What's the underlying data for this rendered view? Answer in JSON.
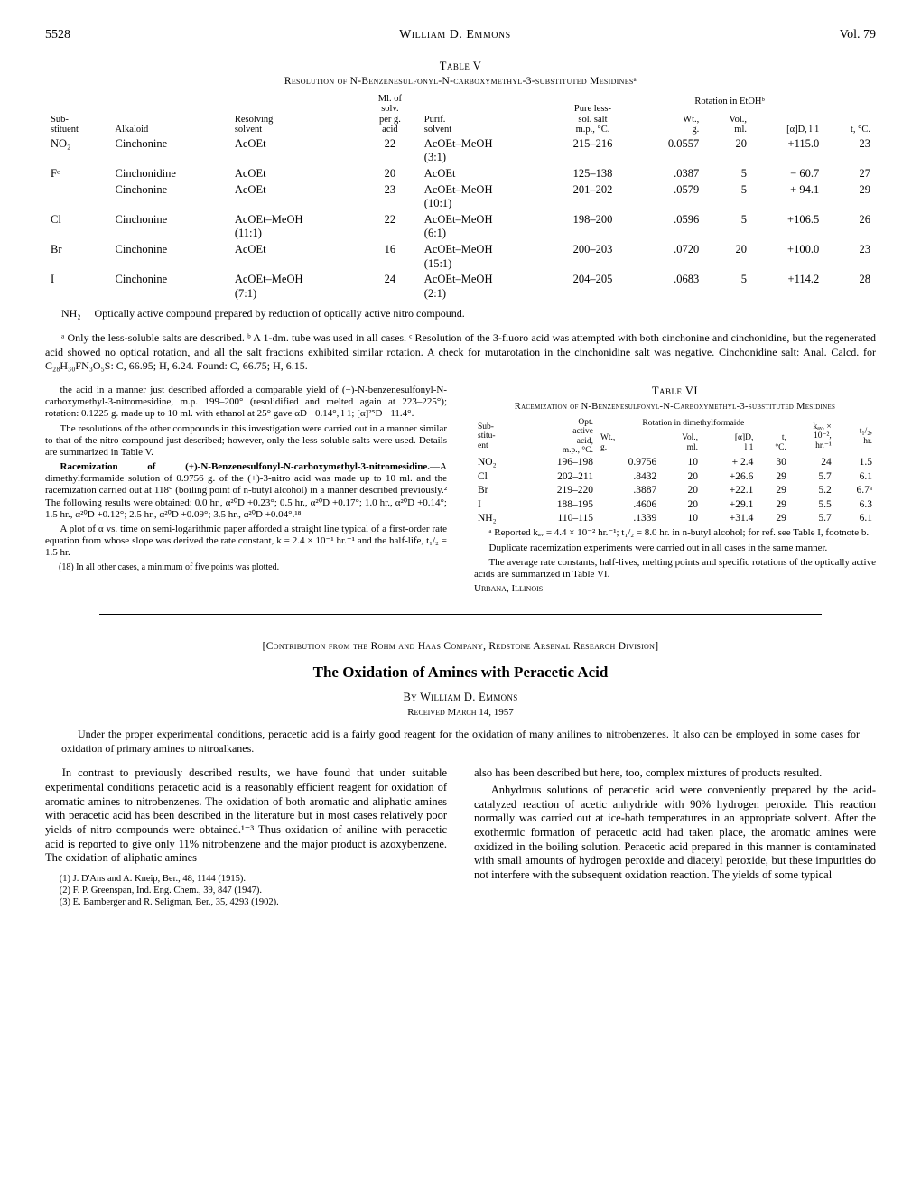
{
  "header": {
    "page_l": "5528",
    "author": "William D. Emmons",
    "page_r": "Vol. 79"
  },
  "table_v": {
    "caption": "Table V",
    "subcaption": "Resolution of N-Benzenesulfonyl-N-carboxymethyl-3-substituted Mesidinesᵃ",
    "col_headers": {
      "sub": "Sub-\nstituent",
      "alk": "Alkaloid",
      "resolv": "Resolving\nsolvent",
      "mlper": "Ml. of\nsolv.\nper g.\nacid",
      "purif": "Purif.\nsolvent",
      "pure": "Pure less-\nsol. salt\nm.p., °C.",
      "rot_span": "Rotation in EtOHᵇ",
      "wt": "Wt.,\ng.",
      "vol": "Vol.,\nml.",
      "alpha": "[α]D, l 1",
      "t": "t, °C."
    },
    "rows": [
      {
        "sub": "NO₂",
        "alk": "Cinchonine",
        "resolv": "AcOEt",
        "ml": "22",
        "purif": "AcOEt–MeOH\n(3:1)",
        "pure": "215–216",
        "wt": "0.0557",
        "vol": "20",
        "alpha": "+115.0",
        "t": "23"
      },
      {
        "sub": "Fᶜ",
        "alk": "Cinchonidine",
        "resolv": "AcOEt",
        "ml": "20",
        "purif": "AcOEt",
        "pure": "125–138",
        "wt": ".0387",
        "vol": "5",
        "alpha": "− 60.7",
        "t": "27"
      },
      {
        "sub": "",
        "alk": "Cinchonine",
        "resolv": "AcOEt",
        "ml": "23",
        "purif": "AcOEt–MeOH\n(10:1)",
        "pure": "201–202",
        "wt": ".0579",
        "vol": "5",
        "alpha": "+ 94.1",
        "t": "29"
      },
      {
        "sub": "Cl",
        "alk": "Cinchonine",
        "resolv": "AcOEt–MeOH\n(11:1)",
        "ml": "22",
        "purif": "AcOEt–MeOH\n(6:1)",
        "pure": "198–200",
        "wt": ".0596",
        "vol": "5",
        "alpha": "+106.5",
        "t": "26"
      },
      {
        "sub": "Br",
        "alk": "Cinchonine",
        "resolv": "AcOEt",
        "ml": "16",
        "purif": "AcOEt–MeOH\n(15:1)",
        "pure": "200–203",
        "wt": ".0720",
        "vol": "20",
        "alpha": "+100.0",
        "t": "23"
      },
      {
        "sub": "I",
        "alk": "Cinchonine",
        "resolv": "AcOEt–MeOH\n(7:1)",
        "ml": "24",
        "purif": "AcOEt–MeOH\n(2:1)",
        "pure": "204–205",
        "wt": ".0683",
        "vol": "5",
        "alpha": "+114.2",
        "t": "28"
      }
    ],
    "nh2_line": "NH₂     Optically active compound prepared by reduction of optically active nitro compound.",
    "footnotes": "ᵃ Only the less-soluble salts are described.  ᵇ A 1-dm. tube was used in all cases.  ᶜ Resolution of the 3-fluoro acid was attempted with both cinchonine and cinchonidine, but the regenerated acid showed no optical rotation, and all the salt fractions exhibited similar rotation.  A check for mutarotation in the cinchonidine salt was negative.  Cinchonidine salt: Anal.  Calcd. for C₂₈H₃₀FN₃O₅S: C, 66.95; H, 6.24.  Found: C, 66.75; H, 6.15."
  },
  "left_col": {
    "p1": "the acid in a manner just described afforded a comparable yield of (−)-N-benzenesulfonyl-N-carboxymethyl-3-nitromesidine, m.p. 199–200° (resolidified and melted again at 223–225°); rotation: 0.1225 g. made up to 10 ml. with ethanol at 25° gave αD −0.14°, l 1; [α]²⁵D −11.4°.",
    "p2": "The resolutions of the other compounds in this investigation were carried out in a manner similar to that of the nitro compound just described; however, only the less-soluble salts were used.  Details are summarized in Table V.",
    "p3_bold": "Racemization of (+)-N-Benzenesulfonyl-N-carboxymethyl-3-nitromesidine.",
    "p3_rest": "—A dimethylformamide solution of 0.9756 g. of the (+)-3-nitro acid was made up to 10 ml. and the racemization carried out at 118° (boiling point of n-butyl alcohol) in a manner described previously.² The following results were obtained: 0.0 hr., α²⁰D +0.23°; 0.5 hr., α²⁰D +0.17°; 1.0 hr., α²⁰D +0.14°; 1.5 hr., α²⁰D +0.12°; 2.5 hr., α²⁰D +0.09°; 3.5 hr., α²⁰D +0.04°.¹⁸",
    "p4": "A plot of α vs. time on semi-logarithmic paper afforded a straight line typical of a first-order rate equation from whose slope was derived the rate constant, k = 2.4 × 10⁻¹ hr.⁻¹ and the half-life, t₁/₂ = 1.5 hr.",
    "fn18": "(18) In all other cases, a minimum of five points was plotted."
  },
  "table_vi": {
    "caption": "Table VI",
    "subcaption": "Racemization of N-Benzenesulfonyl-N-Carboxymethyl-3-substituted Mesidines",
    "headers": {
      "sub": "Sub-\nstitu-\nent",
      "opt": "Opt.\nactive\nacid,\nm.p., °C.",
      "rot_span": "Rotation in dimethylformaide",
      "wt": "Wt.,\ng.",
      "vol": "Vol.,\nml.",
      "alpha": "[α]D,\nl 1",
      "t": "t,\n°C.",
      "kav": "kₐᵥ, ×\n10⁻²,\nhr.⁻¹",
      "thalf": "t₁/₂,\nhr."
    },
    "rows": [
      {
        "sub": "NO₂",
        "opt": "196–198",
        "wt": "0.9756",
        "vol": "10",
        "alpha": "+ 2.4",
        "t": "30",
        "k": "24",
        "th": "1.5"
      },
      {
        "sub": "Cl",
        "opt": "202–211",
        "wt": ".8432",
        "vol": "20",
        "alpha": "+26.6",
        "t": "29",
        "k": "5.7",
        "th": "6.1"
      },
      {
        "sub": "Br",
        "opt": "219–220",
        "wt": ".3887",
        "vol": "20",
        "alpha": "+22.1",
        "t": "29",
        "k": "5.2",
        "th": "6.7ᵃ"
      },
      {
        "sub": "I",
        "opt": "188–195",
        "wt": ".4606",
        "vol": "20",
        "alpha": "+29.1",
        "t": "29",
        "k": "5.5",
        "th": "6.3"
      },
      {
        "sub": "NH₂",
        "opt": "110–115",
        "wt": ".1339",
        "vol": "10",
        "alpha": "+31.4",
        "t": "29",
        "k": "5.7",
        "th": "6.1"
      }
    ],
    "fn": "ᵃ Reported kₐᵥ = 4.4 × 10⁻² hr.⁻¹; t₁/₂ = 8.0 hr. in n-butyl alcohol; for ref. see Table I, footnote b.",
    "p_dup": "Duplicate racemization experiments were carried out in all cases in the same manner.",
    "p_avg": "The average rate constants, half-lives, melting points and specific rotations of the optically active acids are summarized in Table VI.",
    "loc": "Urbana, Illinois"
  },
  "article2": {
    "contribution": "[Contribution from the Rohm and Haas Company, Redstone Arsenal Research Division]",
    "title": "The Oxidation of Amines with Peracetic Acid",
    "author": "By William D. Emmons",
    "date": "Received March 14, 1957",
    "abstract": "Under the proper experimental conditions, peracetic acid is a fairly good reagent for the oxidation of many anilines to nitrobenzenes.  It also can be employed in some cases for oxidation of primary amines to nitroalkanes.",
    "left": {
      "p1": "In contrast to previously described results, we have found that under suitable experimental conditions peracetic acid is a reasonably efficient reagent for oxidation of aromatic amines to nitrobenzenes. The oxidation of both aromatic and aliphatic amines with peracetic acid has been described in the literature but in most cases relatively poor yields of nitro compounds were obtained.¹⁻³  Thus oxidation of aniline with peracetic acid is reported to give only 11% nitrobenzene and the major product is azoxybenzene.  The oxidation of aliphatic amines",
      "r1": "(1) J. D'Ans and A. Kneip, Ber., 48, 1144 (1915).",
      "r2": "(2) F. P. Greenspan, Ind. Eng. Chem., 39, 847 (1947).",
      "r3": "(3) E. Bamberger and R. Seligman, Ber., 35, 4293 (1902)."
    },
    "right": {
      "p1": "also has been described but here, too, complex mixtures of products resulted.",
      "p2": "Anhydrous solutions of peracetic acid were conveniently prepared by the acid-catalyzed reaction of acetic anhydride with 90% hydrogen peroxide. This reaction normally was carried out at ice-bath temperatures in an appropriate solvent.  After the exothermic formation of peracetic acid had taken place, the aromatic amines were oxidized in the boiling solution.  Peracetic acid prepared in this manner is contaminated with small amounts of hydrogen peroxide and diacetyl peroxide, but these impurities do not interfere with the subsequent oxidation reaction.  The yields of some typical"
    }
  }
}
